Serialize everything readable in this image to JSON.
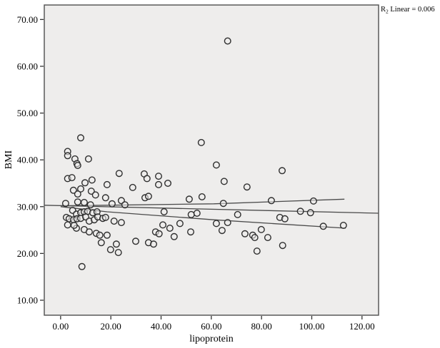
{
  "figure": {
    "background": "#ffffff",
    "plot_background": "#eeedec",
    "frame_color": "#595959",
    "marker_color": "#2e2e2e",
    "line_color": "#4a4a4a",
    "annotation": {
      "prefix": "R",
      "sub": "2",
      "suffix": " Linear = 0.006"
    }
  },
  "chart_data": {
    "type": "scatter",
    "title": "",
    "xlabel": "lipoprotein",
    "ylabel": "BMI",
    "r2_linear": 0.006,
    "grid": false,
    "legend": null,
    "xlim": [
      -6.5,
      126.6
    ],
    "ylim": [
      6.8,
      73.1
    ],
    "x_tick_values": [
      0,
      20,
      40,
      60,
      80,
      100,
      120
    ],
    "x_tick_labels": [
      "0.00",
      "20.00",
      "40.00",
      "60.00",
      "80.00",
      "100.00",
      "120.00"
    ],
    "y_tick_values": [
      10,
      20,
      30,
      40,
      50,
      60,
      70
    ],
    "y_tick_labels": [
      "10.00",
      "20.00",
      "30.00",
      "40.00",
      "50.00",
      "60.00",
      "70.00"
    ],
    "marker": {
      "shape": "open-circle",
      "radius_px": 4.3
    },
    "points": [
      [
        8.0,
        44.7
      ],
      [
        2.8,
        41.8
      ],
      [
        2.8,
        40.9
      ],
      [
        5.7,
        40.2
      ],
      [
        6.5,
        39.2
      ],
      [
        6.8,
        38.8
      ],
      [
        11.1,
        40.2
      ],
      [
        23.3,
        37.1
      ],
      [
        33.3,
        37.0
      ],
      [
        2.8,
        36.0
      ],
      [
        4.5,
        36.2
      ],
      [
        9.7,
        35.1
      ],
      [
        12.5,
        35.7
      ],
      [
        18.5,
        34.7
      ],
      [
        34.4,
        36.0
      ],
      [
        39.0,
        36.5
      ],
      [
        39.0,
        34.7
      ],
      [
        42.7,
        35.0
      ],
      [
        5.1,
        33.5
      ],
      [
        8.0,
        33.8
      ],
      [
        6.8,
        32.7
      ],
      [
        12.2,
        33.3
      ],
      [
        13.9,
        32.5
      ],
      [
        28.7,
        34.1
      ],
      [
        17.9,
        31.9
      ],
      [
        2.0,
        30.7
      ],
      [
        6.8,
        31.0
      ],
      [
        9.4,
        30.9
      ],
      [
        11.9,
        30.4
      ],
      [
        20.5,
        30.6
      ],
      [
        24.2,
        31.3
      ],
      [
        25.6,
        30.4
      ],
      [
        4.8,
        29.2
      ],
      [
        6.3,
        28.4
      ],
      [
        8.0,
        28.7
      ],
      [
        9.4,
        28.9
      ],
      [
        10.8,
        29.0
      ],
      [
        12.8,
        28.7
      ],
      [
        14.5,
        28.9
      ],
      [
        2.3,
        27.7
      ],
      [
        3.4,
        27.4
      ],
      [
        5.1,
        27.2
      ],
      [
        6.5,
        27.4
      ],
      [
        8.0,
        27.5
      ],
      [
        10.0,
        27.8
      ],
      [
        11.4,
        26.9
      ],
      [
        13.4,
        27.2
      ],
      [
        14.8,
        27.8
      ],
      [
        16.8,
        27.5
      ],
      [
        17.9,
        27.7
      ],
      [
        21.3,
        26.9
      ],
      [
        24.2,
        26.6
      ],
      [
        6.3,
        25.4
      ],
      [
        9.4,
        25.1
      ],
      [
        11.4,
        24.6
      ],
      [
        14.2,
        24.3
      ],
      [
        15.6,
        23.9
      ],
      [
        18.5,
        23.9
      ],
      [
        16.2,
        22.3
      ],
      [
        19.9,
        20.8
      ],
      [
        22.2,
        22.0
      ],
      [
        23.0,
        20.2
      ],
      [
        29.9,
        22.6
      ],
      [
        35.0,
        22.3
      ],
      [
        37.0,
        22.0
      ],
      [
        40.7,
        26.1
      ],
      [
        37.8,
        24.6
      ],
      [
        39.2,
        24.2
      ],
      [
        43.5,
        25.4
      ],
      [
        8.5,
        17.2
      ],
      [
        56.0,
        43.7
      ],
      [
        62.0,
        38.9
      ],
      [
        65.1,
        35.4
      ],
      [
        74.2,
        34.2
      ],
      [
        88.2,
        37.7
      ],
      [
        56.3,
        32.1
      ],
      [
        83.9,
        31.3
      ],
      [
        64.8,
        30.7
      ],
      [
        52.0,
        28.3
      ],
      [
        54.3,
        28.6
      ],
      [
        70.5,
        28.3
      ],
      [
        62.0,
        26.4
      ],
      [
        66.5,
        26.6
      ],
      [
        64.3,
        24.9
      ],
      [
        47.5,
        26.4
      ],
      [
        45.2,
        23.6
      ],
      [
        51.8,
        24.6
      ],
      [
        73.4,
        24.2
      ],
      [
        76.5,
        23.9
      ],
      [
        77.3,
        23.4
      ],
      [
        79.9,
        25.1
      ],
      [
        82.5,
        23.4
      ],
      [
        88.4,
        21.7
      ],
      [
        78.2,
        20.5
      ],
      [
        87.3,
        27.7
      ],
      [
        89.3,
        27.4
      ],
      [
        66.5,
        65.4
      ],
      [
        100.7,
        31.2
      ],
      [
        95.5,
        29.0
      ],
      [
        99.5,
        28.7
      ],
      [
        104.6,
        25.8
      ],
      [
        112.6,
        26.0
      ],
      [
        41.2,
        28.9
      ],
      [
        33.6,
        31.9
      ],
      [
        35.0,
        32.2
      ],
      [
        51.2,
        31.6
      ],
      [
        2.8,
        26.1
      ],
      [
        5.4,
        26.0
      ]
    ],
    "fit_line": [
      [
        -6.5,
        30.3
      ],
      [
        126.6,
        28.6
      ]
    ],
    "ci_upper": [
      [
        0,
        30.2
      ],
      [
        18.5,
        30.3
      ],
      [
        61,
        30.6
      ],
      [
        113,
        31.6
      ]
    ],
    "ci_lower": [
      [
        0,
        30.0
      ],
      [
        18.5,
        28.9
      ],
      [
        61,
        27.2
      ],
      [
        113.5,
        25.4
      ]
    ]
  }
}
